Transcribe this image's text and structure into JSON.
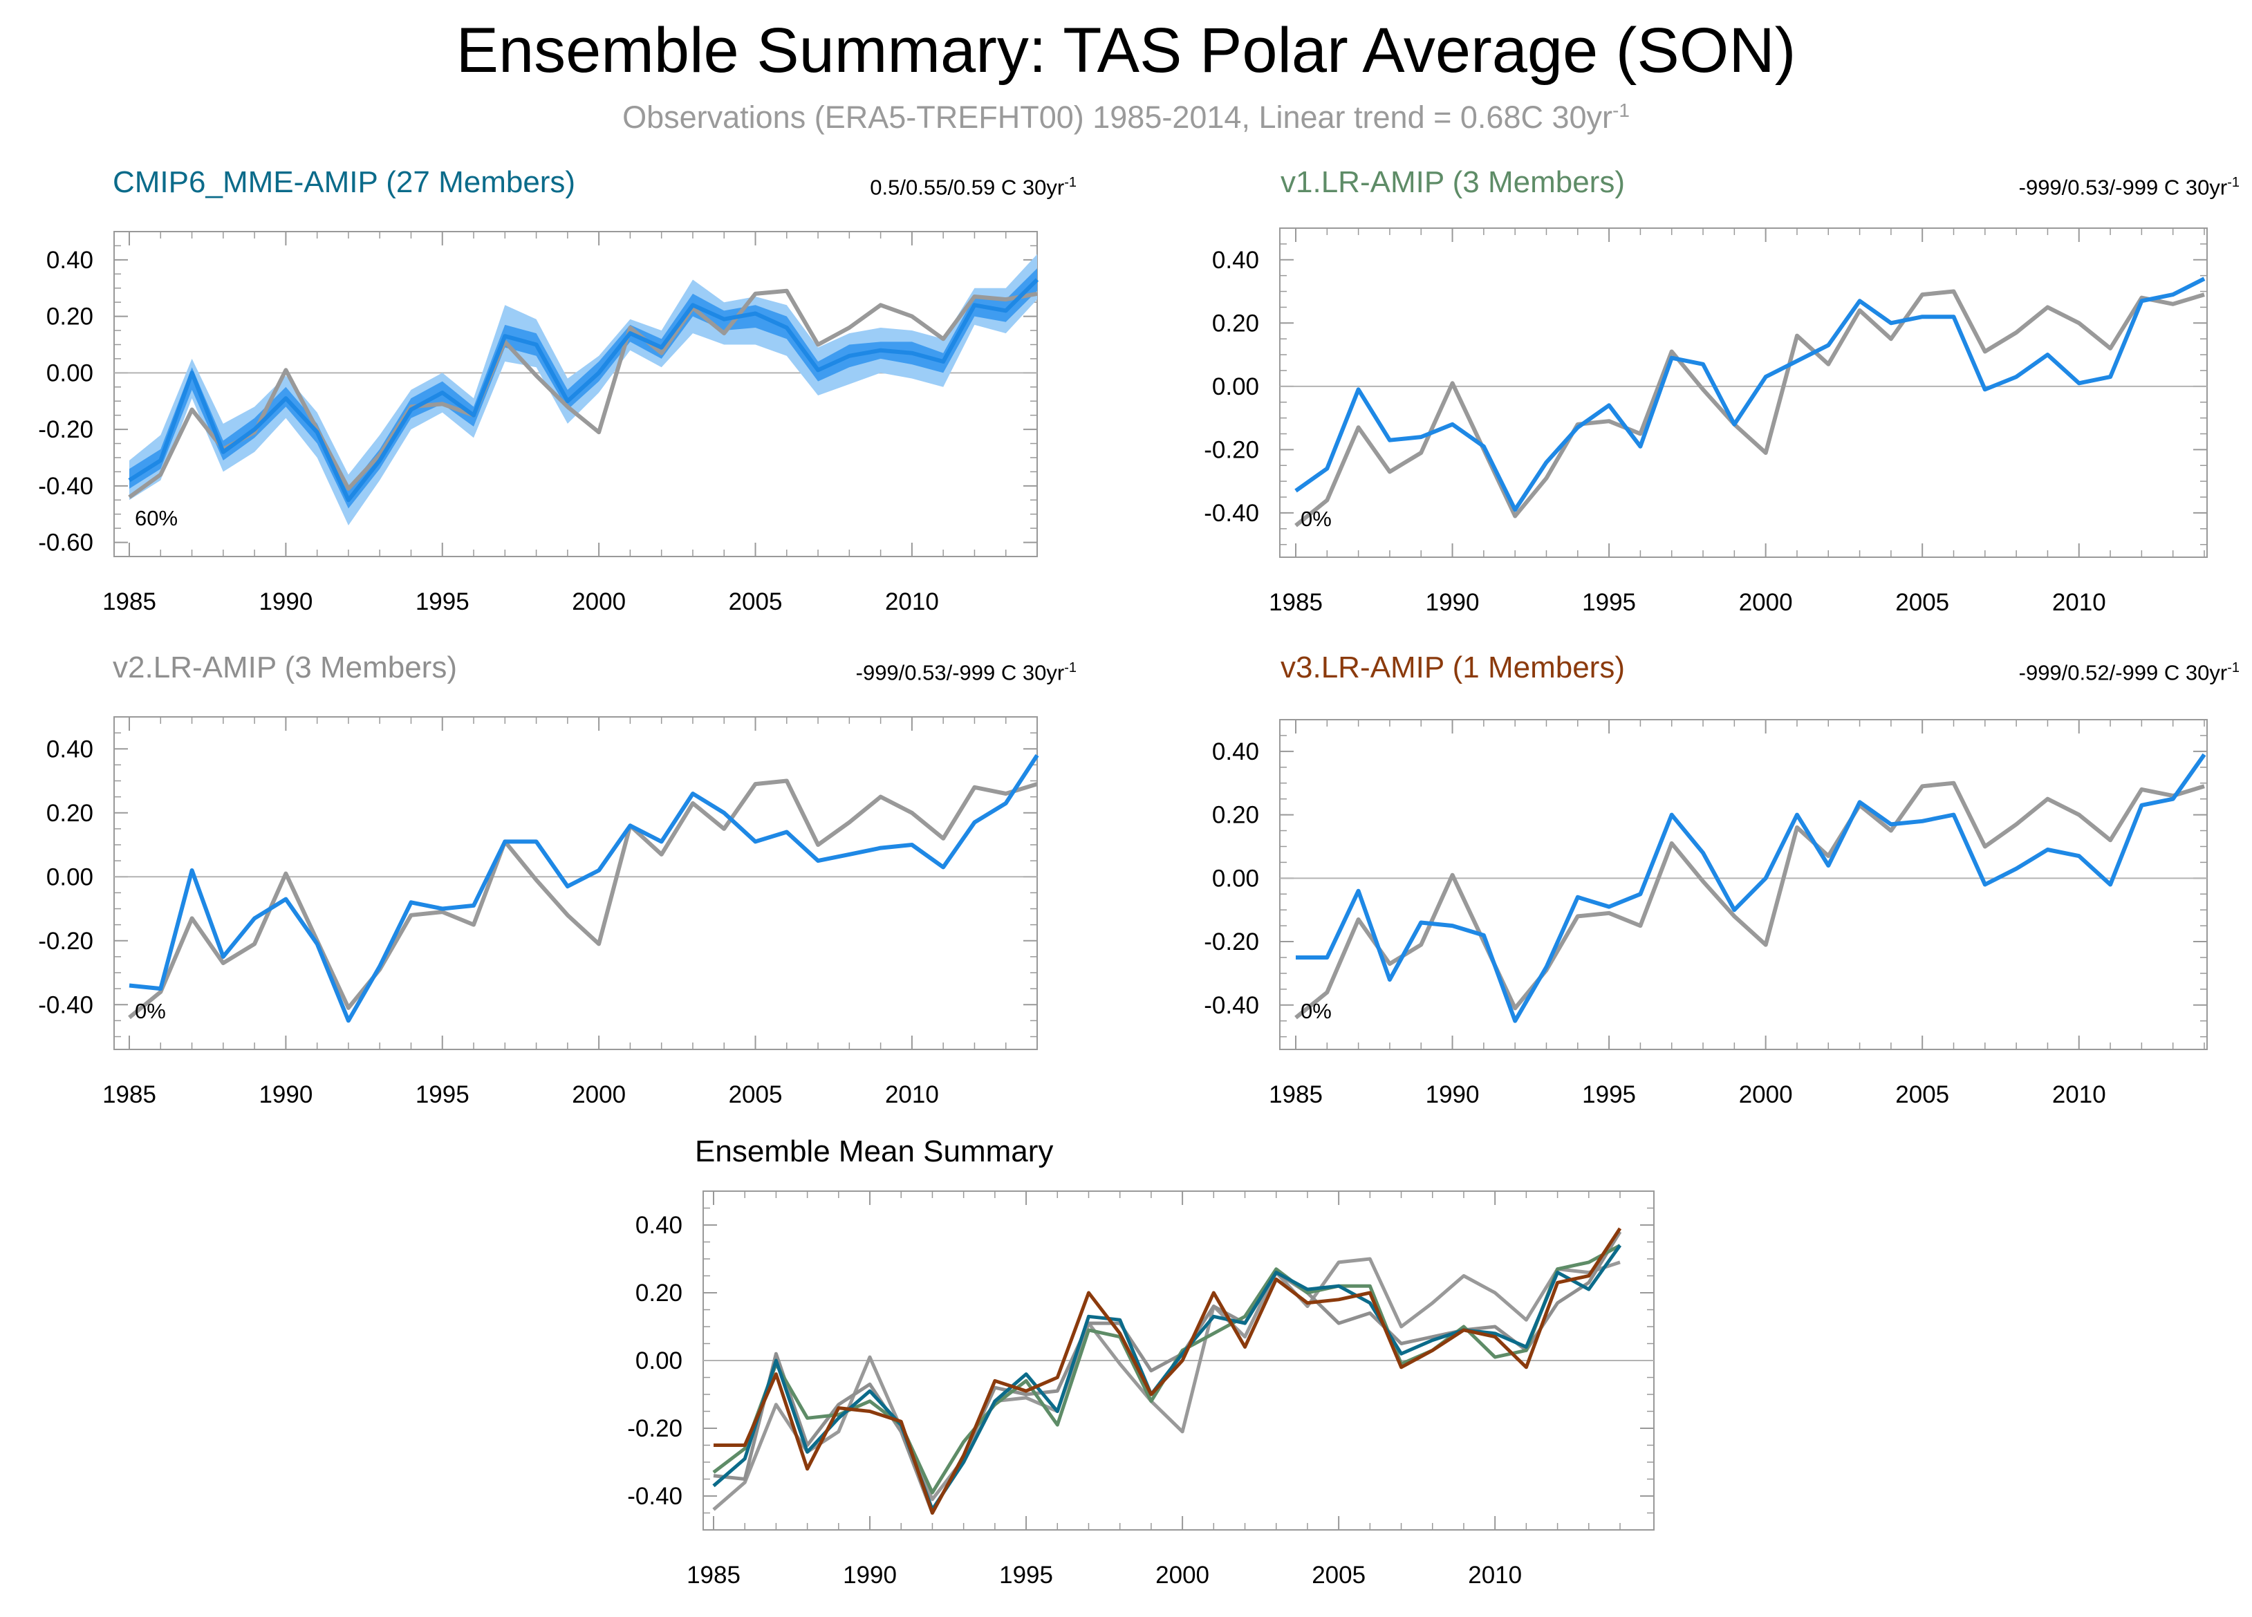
{
  "title": "Ensemble Summary: TAS Polar Average (SON)",
  "subtitle": {
    "text": "Observations (ERA5-TREFHT00) 1985-2014, Linear trend = 0.68C 30yr",
    "sup": "-1"
  },
  "colors": {
    "observations": "#999999",
    "model": "#1e88e5",
    "band_inner": "#3f9cf0",
    "band_outer": "#9ccdf7",
    "cmip6": "#0b6b8a",
    "v1": "#5e8c67",
    "v2": "#8f8f8f",
    "v3": "#8b3a0c",
    "zero_line": "#b3b3b3",
    "frame": "#999999"
  },
  "chart_data": [
    {
      "id": "cmip6",
      "type": "line",
      "title": "CMIP6_MME-AMIP (27 Members)",
      "title_color": "#0b6b8a",
      "stats": "0.5/0.55/0.59 C 30yr",
      "stats_sup": "-1",
      "percent_label": "60%",
      "xlim": [
        1985,
        2014
      ],
      "ylim": [
        -0.65,
        0.5
      ],
      "yticks": [
        "0.40",
        "0.20",
        "0.00",
        "-0.20",
        "-0.40",
        "-0.60"
      ],
      "xticks": [
        "1985",
        "1990",
        "1995",
        "2000",
        "2005",
        "2010"
      ],
      "years": [
        1985,
        1986,
        1987,
        1988,
        1989,
        1990,
        1991,
        1992,
        1993,
        1994,
        1995,
        1996,
        1997,
        1998,
        1999,
        2000,
        2001,
        2002,
        2003,
        2004,
        2005,
        2006,
        2007,
        2008,
        2009,
        2010,
        2011,
        2012,
        2013,
        2014
      ],
      "observations": [
        -0.44,
        -0.36,
        -0.13,
        -0.27,
        -0.21,
        0.01,
        -0.2,
        -0.41,
        -0.29,
        -0.12,
        -0.11,
        -0.15,
        0.11,
        -0.01,
        -0.12,
        -0.21,
        0.16,
        0.07,
        0.23,
        0.14,
        0.28,
        0.29,
        0.1,
        0.16,
        0.24,
        0.2,
        0.12,
        0.27,
        0.26,
        0.28
      ],
      "bands": {
        "outer_upper": [
          -0.31,
          -0.22,
          0.05,
          -0.18,
          -0.12,
          -0.01,
          -0.14,
          -0.36,
          -0.22,
          -0.06,
          0.0,
          -0.09,
          0.24,
          0.19,
          -0.02,
          0.06,
          0.19,
          0.15,
          0.33,
          0.25,
          0.27,
          0.24,
          0.09,
          0.14,
          0.16,
          0.15,
          0.12,
          0.3,
          0.3,
          0.42
        ],
        "inner_upper": [
          -0.34,
          -0.27,
          0.02,
          -0.24,
          -0.16,
          -0.05,
          -0.18,
          -0.41,
          -0.27,
          -0.09,
          -0.03,
          -0.12,
          0.17,
          0.14,
          -0.06,
          0.04,
          0.17,
          0.12,
          0.28,
          0.22,
          0.24,
          0.2,
          0.04,
          0.1,
          0.11,
          0.11,
          0.07,
          0.27,
          0.26,
          0.37
        ],
        "inner_lower": [
          -0.41,
          -0.34,
          -0.06,
          -0.31,
          -0.23,
          -0.12,
          -0.25,
          -0.48,
          -0.34,
          -0.16,
          -0.11,
          -0.19,
          0.09,
          0.06,
          -0.13,
          -0.03,
          0.11,
          0.05,
          0.2,
          0.15,
          0.16,
          0.12,
          -0.03,
          0.02,
          0.05,
          0.03,
          0.0,
          0.2,
          0.18,
          0.29
        ],
        "outer_lower": [
          -0.45,
          -0.38,
          -0.09,
          -0.35,
          -0.28,
          -0.16,
          -0.3,
          -0.54,
          -0.38,
          -0.2,
          -0.14,
          -0.23,
          0.04,
          0.02,
          -0.18,
          -0.07,
          0.08,
          0.02,
          0.14,
          0.1,
          0.1,
          0.06,
          -0.08,
          -0.04,
          0.0,
          -0.02,
          -0.05,
          0.17,
          0.14,
          0.26
        ]
      },
      "model_mean": [
        -0.38,
        -0.31,
        0.0,
        -0.28,
        -0.2,
        -0.09,
        -0.21,
        -0.45,
        -0.31,
        -0.13,
        -0.07,
        -0.15,
        0.13,
        0.1,
        -0.1,
        0.0,
        0.14,
        0.09,
        0.24,
        0.19,
        0.21,
        0.16,
        0.01,
        0.06,
        0.08,
        0.07,
        0.04,
        0.24,
        0.22,
        0.33
      ]
    },
    {
      "id": "v1",
      "type": "line",
      "title": "v1.LR-AMIP (3 Members)",
      "title_color": "#5e8c67",
      "stats": "-999/0.53/-999 C 30yr",
      "stats_sup": "-1",
      "percent_label": "0%",
      "xlim": [
        1985,
        2014
      ],
      "ylim": [
        -0.54,
        0.5
      ],
      "yticks": [
        "0.40",
        "0.20",
        "0.00",
        "-0.20",
        "-0.40"
      ],
      "xticks": [
        "1985",
        "1990",
        "1995",
        "2000",
        "2005",
        "2010"
      ],
      "years": [
        1985,
        1986,
        1987,
        1988,
        1989,
        1990,
        1991,
        1992,
        1993,
        1994,
        1995,
        1996,
        1997,
        1998,
        1999,
        2000,
        2001,
        2002,
        2003,
        2004,
        2005,
        2006,
        2007,
        2008,
        2009,
        2010,
        2011,
        2012,
        2013,
        2014
      ],
      "observations": [
        -0.44,
        -0.36,
        -0.13,
        -0.27,
        -0.21,
        0.01,
        -0.2,
        -0.41,
        -0.29,
        -0.12,
        -0.11,
        -0.15,
        0.11,
        -0.01,
        -0.12,
        -0.21,
        0.16,
        0.07,
        0.24,
        0.15,
        0.29,
        0.3,
        0.11,
        0.17,
        0.25,
        0.2,
        0.12,
        0.28,
        0.26,
        0.29
      ],
      "model_mean": [
        -0.33,
        -0.26,
        -0.01,
        -0.17,
        -0.16,
        -0.12,
        -0.19,
        -0.39,
        -0.24,
        -0.13,
        -0.06,
        -0.19,
        0.09,
        0.07,
        -0.12,
        0.03,
        0.08,
        0.13,
        0.27,
        0.2,
        0.22,
        0.22,
        -0.01,
        0.03,
        0.1,
        0.01,
        0.03,
        0.27,
        0.29,
        0.34
      ]
    },
    {
      "id": "v2",
      "type": "line",
      "title": "v2.LR-AMIP (3 Members)",
      "title_color": "#8f8f8f",
      "stats": "-999/0.53/-999 C 30yr",
      "stats_sup": "-1",
      "percent_label": "0%",
      "xlim": [
        1985,
        2014
      ],
      "ylim": [
        -0.54,
        0.5
      ],
      "yticks": [
        "0.40",
        "0.20",
        "0.00",
        "-0.20",
        "-0.40"
      ],
      "xticks": [
        "1985",
        "1990",
        "1995",
        "2000",
        "2005",
        "2010"
      ],
      "years": [
        1985,
        1986,
        1987,
        1988,
        1989,
        1990,
        1991,
        1992,
        1993,
        1994,
        1995,
        1996,
        1997,
        1998,
        1999,
        2000,
        2001,
        2002,
        2003,
        2004,
        2005,
        2006,
        2007,
        2008,
        2009,
        2010,
        2011,
        2012,
        2013,
        2014
      ],
      "observations": [
        -0.44,
        -0.36,
        -0.13,
        -0.27,
        -0.21,
        0.01,
        -0.2,
        -0.41,
        -0.29,
        -0.12,
        -0.11,
        -0.15,
        0.11,
        -0.01,
        -0.12,
        -0.21,
        0.16,
        0.07,
        0.23,
        0.15,
        0.29,
        0.3,
        0.1,
        0.17,
        0.25,
        0.2,
        0.12,
        0.28,
        0.26,
        0.29
      ],
      "model_mean": [
        -0.34,
        -0.35,
        0.02,
        -0.25,
        -0.13,
        -0.07,
        -0.21,
        -0.45,
        -0.28,
        -0.08,
        -0.1,
        -0.09,
        0.11,
        0.11,
        -0.03,
        0.02,
        0.16,
        0.11,
        0.26,
        0.2,
        0.11,
        0.14,
        0.05,
        0.07,
        0.09,
        0.1,
        0.03,
        0.17,
        0.23,
        0.38
      ]
    },
    {
      "id": "v3",
      "type": "line",
      "title": "v3.LR-AMIP (1 Members)",
      "title_color": "#8b3a0c",
      "stats": "-999/0.52/-999 C 30yr",
      "stats_sup": "-1",
      "percent_label": "0%",
      "xlim": [
        1985,
        2014
      ],
      "ylim": [
        -0.54,
        0.5
      ],
      "yticks": [
        "0.40",
        "0.20",
        "0.00",
        "-0.20",
        "-0.40"
      ],
      "xticks": [
        "1985",
        "1990",
        "1995",
        "2000",
        "2005",
        "2010"
      ],
      "years": [
        1985,
        1986,
        1987,
        1988,
        1989,
        1990,
        1991,
        1992,
        1993,
        1994,
        1995,
        1996,
        1997,
        1998,
        1999,
        2000,
        2001,
        2002,
        2003,
        2004,
        2005,
        2006,
        2007,
        2008,
        2009,
        2010,
        2011,
        2012,
        2013,
        2014
      ],
      "observations": [
        -0.44,
        -0.36,
        -0.13,
        -0.27,
        -0.21,
        0.01,
        -0.2,
        -0.41,
        -0.29,
        -0.12,
        -0.11,
        -0.15,
        0.11,
        -0.01,
        -0.12,
        -0.21,
        0.16,
        0.07,
        0.23,
        0.15,
        0.29,
        0.3,
        0.1,
        0.17,
        0.25,
        0.2,
        0.12,
        0.28,
        0.26,
        0.29
      ],
      "model_mean": [
        -0.25,
        -0.25,
        -0.04,
        -0.32,
        -0.14,
        -0.15,
        -0.18,
        -0.45,
        -0.28,
        -0.06,
        -0.09,
        -0.05,
        0.2,
        0.08,
        -0.1,
        0.0,
        0.2,
        0.04,
        0.24,
        0.17,
        0.18,
        0.2,
        -0.02,
        0.03,
        0.09,
        0.07,
        -0.02,
        0.23,
        0.25,
        0.39
      ]
    },
    {
      "id": "ensemble",
      "type": "line",
      "title": "Ensemble Mean Summary",
      "xlim": [
        1985,
        2014
      ],
      "ylim": [
        -0.5,
        0.5
      ],
      "yticks": [
        "0.40",
        "0.20",
        "0.00",
        "-0.20",
        "-0.40"
      ],
      "xticks": [
        "1985",
        "1990",
        "1995",
        "2000",
        "2005",
        "2010"
      ],
      "years": [
        1985,
        1986,
        1987,
        1988,
        1989,
        1990,
        1991,
        1992,
        1993,
        1994,
        1995,
        1996,
        1997,
        1998,
        1999,
        2000,
        2001,
        2002,
        2003,
        2004,
        2005,
        2006,
        2007,
        2008,
        2009,
        2010,
        2011,
        2012,
        2013,
        2014
      ],
      "series": [
        {
          "key": "observations",
          "color": "#999999",
          "values": [
            -0.44,
            -0.36,
            -0.13,
            -0.27,
            -0.21,
            0.01,
            -0.2,
            -0.41,
            -0.29,
            -0.12,
            -0.11,
            -0.15,
            0.11,
            -0.01,
            -0.12,
            -0.21,
            0.16,
            0.07,
            0.26,
            0.16,
            0.29,
            0.3,
            0.1,
            0.17,
            0.25,
            0.2,
            0.12,
            0.27,
            0.26,
            0.29
          ]
        },
        {
          "key": "v2",
          "color": "#8f8f8f",
          "values": [
            -0.34,
            -0.35,
            0.02,
            -0.25,
            -0.13,
            -0.07,
            -0.21,
            -0.45,
            -0.28,
            -0.08,
            -0.1,
            -0.09,
            0.11,
            0.11,
            -0.03,
            0.02,
            0.16,
            0.11,
            0.26,
            0.2,
            0.11,
            0.14,
            0.05,
            0.07,
            0.09,
            0.1,
            0.03,
            0.17,
            0.23,
            0.38
          ]
        },
        {
          "key": "v1",
          "color": "#5e8c67",
          "values": [
            -0.33,
            -0.26,
            -0.01,
            -0.17,
            -0.16,
            -0.12,
            -0.19,
            -0.39,
            -0.24,
            -0.13,
            -0.06,
            -0.19,
            0.09,
            0.07,
            -0.12,
            0.03,
            0.08,
            0.13,
            0.27,
            0.2,
            0.22,
            0.22,
            -0.01,
            0.03,
            0.1,
            0.01,
            0.03,
            0.27,
            0.29,
            0.34
          ]
        },
        {
          "key": "cmip6",
          "color": "#0b6b8a",
          "values": [
            -0.37,
            -0.29,
            0.0,
            -0.27,
            -0.17,
            -0.09,
            -0.19,
            -0.44,
            -0.3,
            -0.12,
            -0.04,
            -0.15,
            0.13,
            0.12,
            -0.1,
            0.02,
            0.13,
            0.11,
            0.26,
            0.21,
            0.22,
            0.17,
            0.02,
            0.06,
            0.09,
            0.08,
            0.04,
            0.26,
            0.21,
            0.34
          ]
        },
        {
          "key": "v3",
          "color": "#8b3a0c",
          "values": [
            -0.25,
            -0.25,
            -0.04,
            -0.32,
            -0.14,
            -0.15,
            -0.18,
            -0.45,
            -0.28,
            -0.06,
            -0.09,
            -0.05,
            0.2,
            0.08,
            -0.1,
            0.0,
            0.2,
            0.04,
            0.24,
            0.17,
            0.18,
            0.2,
            -0.02,
            0.03,
            0.09,
            0.07,
            -0.02,
            0.23,
            0.25,
            0.39
          ]
        }
      ]
    }
  ]
}
